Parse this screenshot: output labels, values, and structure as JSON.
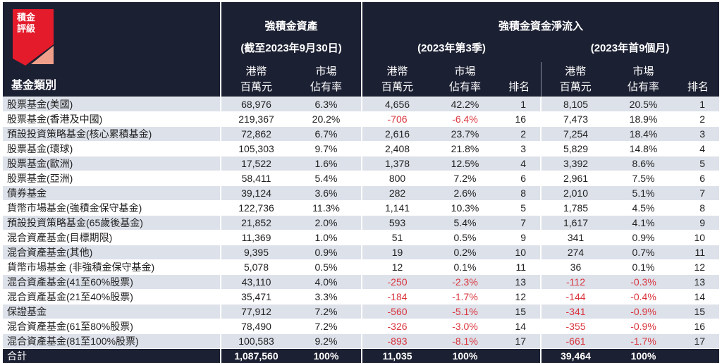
{
  "logo": {
    "text_line1": "積金",
    "text_line2": "評級",
    "color": "#e31b2b",
    "accent": "#f0a08a"
  },
  "header": {
    "category_label": "基金類別",
    "assets_title": "強積金資產",
    "assets_date": "(截至2023年9月30日)",
    "flow_title": "強積金資金淨流入",
    "q3_label": "(2023年第3季)",
    "ytd_label": "(2023年首9個月)",
    "hkd_line1": "港幣",
    "hkd_line2": "百萬元",
    "share_line1": "市場",
    "share_line2": "佔有率",
    "rank": "排名"
  },
  "colors": {
    "header_bg": "#1c2033",
    "stripe": "#dde1ea",
    "negative": "#d9363e"
  },
  "rows": [
    {
      "name": "股票基金(美國)",
      "assets": "68,976",
      "assets_share": "6.3%",
      "q3": "4,656",
      "q3_share": "42.2%",
      "q3_rank": "1",
      "ytd": "8,105",
      "ytd_share": "20.5%",
      "ytd_rank": "1"
    },
    {
      "name": "股票基金(香港及中國)",
      "assets": "219,367",
      "assets_share": "20.2%",
      "q3": "-706",
      "q3_share": "-6.4%",
      "q3_rank": "16",
      "ytd": "7,473",
      "ytd_share": "18.9%",
      "ytd_rank": "2"
    },
    {
      "name": "預設投資策略基金(核心累積基金)",
      "assets": "72,862",
      "assets_share": "6.7%",
      "q3": "2,616",
      "q3_share": "23.7%",
      "q3_rank": "2",
      "ytd": "7,254",
      "ytd_share": "18.4%",
      "ytd_rank": "3"
    },
    {
      "name": "股票基金(環球)",
      "assets": "105,303",
      "assets_share": "9.7%",
      "q3": "2,408",
      "q3_share": "21.8%",
      "q3_rank": "3",
      "ytd": "5,829",
      "ytd_share": "14.8%",
      "ytd_rank": "4"
    },
    {
      "name": "股票基金(歐洲)",
      "assets": "17,522",
      "assets_share": "1.6%",
      "q3": "1,378",
      "q3_share": "12.5%",
      "q3_rank": "4",
      "ytd": "3,392",
      "ytd_share": "8.6%",
      "ytd_rank": "5"
    },
    {
      "name": "股票基金(亞洲)",
      "assets": "58,411",
      "assets_share": "5.4%",
      "q3": "800",
      "q3_share": "7.2%",
      "q3_rank": "6",
      "ytd": "2,961",
      "ytd_share": "7.5%",
      "ytd_rank": "6"
    },
    {
      "name": "債券基金",
      "assets": "39,124",
      "assets_share": "3.6%",
      "q3": "282",
      "q3_share": "2.6%",
      "q3_rank": "8",
      "ytd": "2,010",
      "ytd_share": "5.1%",
      "ytd_rank": "7"
    },
    {
      "name": "貨幣市場基金(強積金保守基金)",
      "assets": "122,736",
      "assets_share": "11.3%",
      "q3": "1,141",
      "q3_share": "10.3%",
      "q3_rank": "5",
      "ytd": "1,785",
      "ytd_share": "4.5%",
      "ytd_rank": "8"
    },
    {
      "name": "預設投資策略基金(65歲後基金)",
      "assets": "21,852",
      "assets_share": "2.0%",
      "q3": "593",
      "q3_share": "5.4%",
      "q3_rank": "7",
      "ytd": "1,617",
      "ytd_share": "4.1%",
      "ytd_rank": "9"
    },
    {
      "name": "混合資產基金(目標期限)",
      "assets": "11,369",
      "assets_share": "1.0%",
      "q3": "51",
      "q3_share": "0.5%",
      "q3_rank": "9",
      "ytd": "341",
      "ytd_share": "0.9%",
      "ytd_rank": "10"
    },
    {
      "name": "混合資產基金(其他)",
      "assets": "9,395",
      "assets_share": "0.9%",
      "q3": "19",
      "q3_share": "0.2%",
      "q3_rank": "10",
      "ytd": "274",
      "ytd_share": "0.7%",
      "ytd_rank": "11"
    },
    {
      "name": "貨幣市場基金 (非強積金保守基金)",
      "assets": "5,078",
      "assets_share": "0.5%",
      "q3": "12",
      "q3_share": "0.1%",
      "q3_rank": "11",
      "ytd": "36",
      "ytd_share": "0.1%",
      "ytd_rank": "12"
    },
    {
      "name": "混合資產基金(41至60%股票)",
      "assets": "43,110",
      "assets_share": "4.0%",
      "q3": "-250",
      "q3_share": "-2.3%",
      "q3_rank": "13",
      "ytd": "-112",
      "ytd_share": "-0.3%",
      "ytd_rank": "13"
    },
    {
      "name": "混合資產基金(21至40%股票)",
      "assets": "35,471",
      "assets_share": "3.3%",
      "q3": "-184",
      "q3_share": "-1.7%",
      "q3_rank": "12",
      "ytd": "-144",
      "ytd_share": "-0.4%",
      "ytd_rank": "14"
    },
    {
      "name": "保證基金",
      "assets": "77,912",
      "assets_share": "7.2%",
      "q3": "-560",
      "q3_share": "-5.1%",
      "q3_rank": "15",
      "ytd": "-341",
      "ytd_share": "-0.9%",
      "ytd_rank": "15"
    },
    {
      "name": "混合資產基金(61至80%股票)",
      "assets": "78,490",
      "assets_share": "7.2%",
      "q3": "-326",
      "q3_share": "-3.0%",
      "q3_rank": "14",
      "ytd": "-355",
      "ytd_share": "-0.9%",
      "ytd_rank": "16"
    },
    {
      "name": "混合資產基金(81至100%股票)",
      "assets": "100,583",
      "assets_share": "9.2%",
      "q3": "-893",
      "q3_share": "-8.1%",
      "q3_rank": "17",
      "ytd": "-661",
      "ytd_share": "-1.7%",
      "ytd_rank": "17"
    }
  ],
  "total": {
    "name": "合計",
    "assets": "1,087,560",
    "assets_share": "100%",
    "q3": "11,035",
    "q3_share": "100%",
    "ytd": "39,464",
    "ytd_share": "100%"
  }
}
